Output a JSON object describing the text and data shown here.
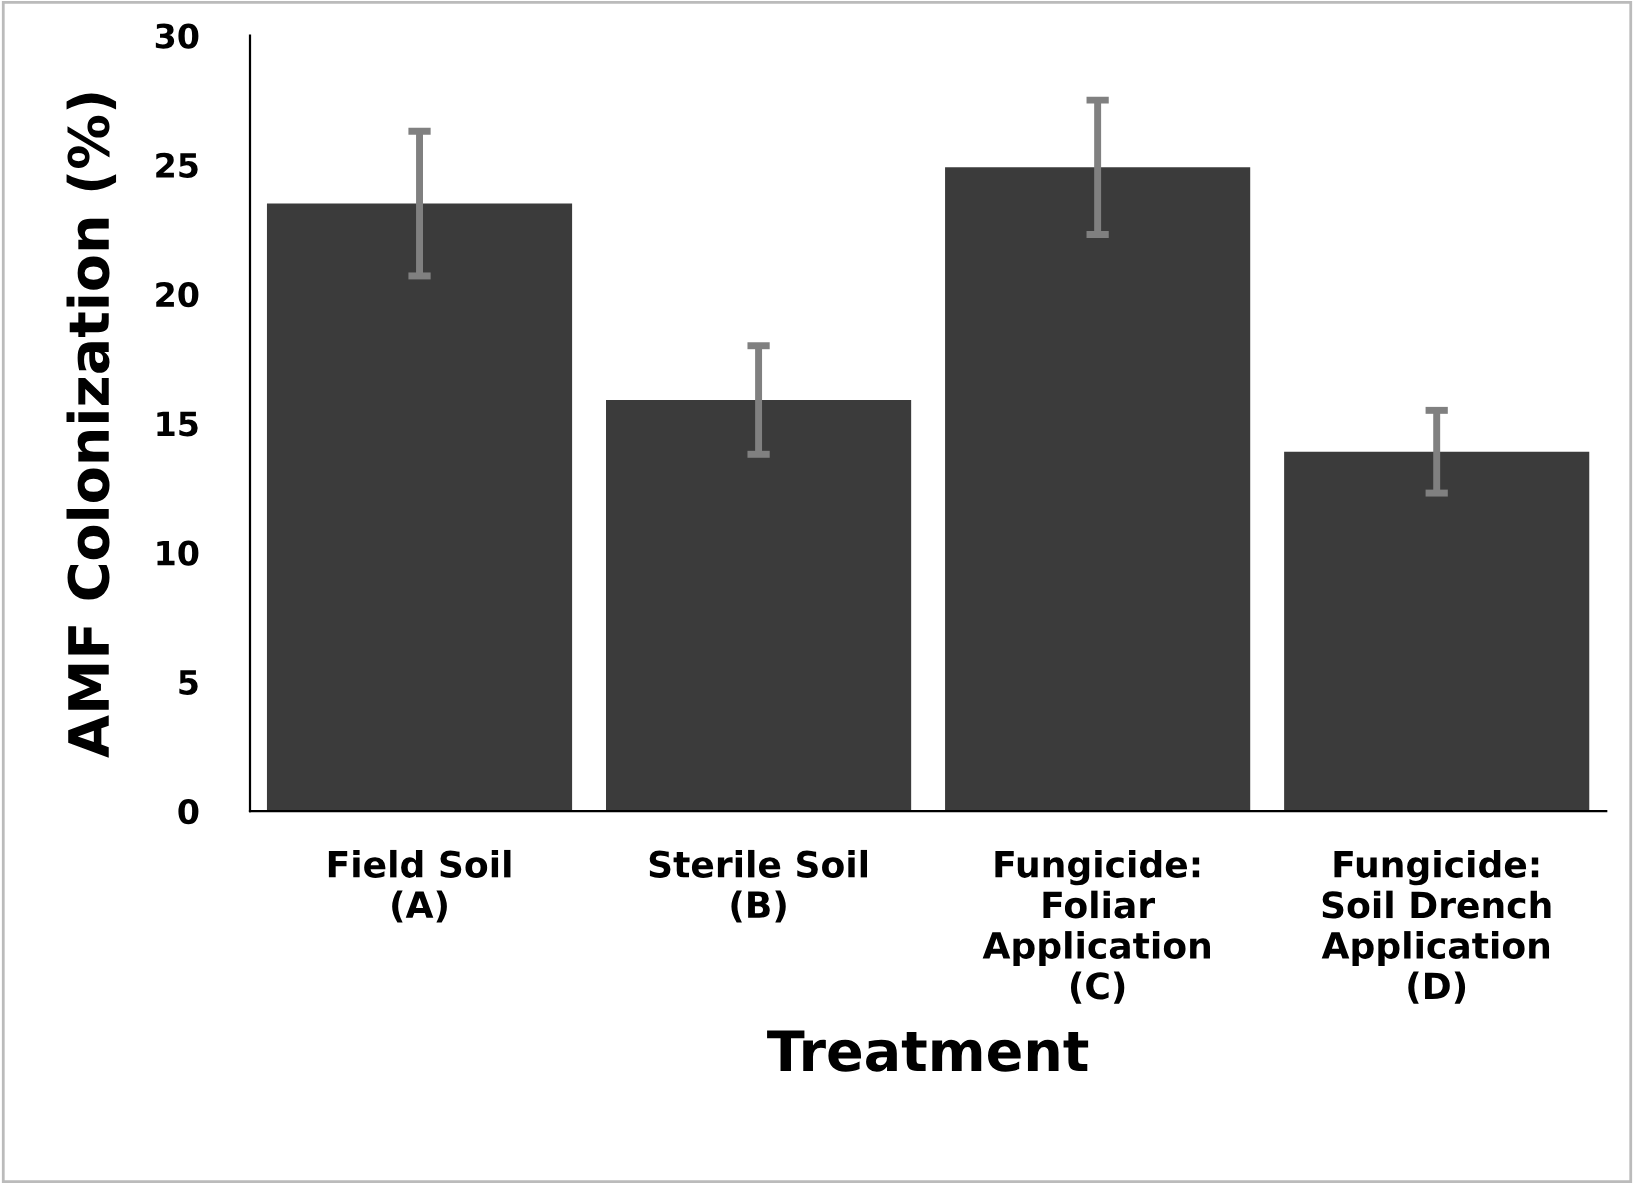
{
  "chart_data": {
    "type": "bar",
    "xlabel": "Treatment",
    "ylabel": "AMF Colonization (%)",
    "categories": [
      "Field Soil\n(A)",
      "Sterile Soil\n(B)",
      "Fungicide:\nFoliar\nApplication\n(C)",
      "Fungicide:\nSoil Drench\nApplication\n(D)"
    ],
    "values": [
      23.5,
      15.9,
      24.9,
      13.9
    ],
    "errors": [
      2.8,
      2.1,
      2.6,
      1.6
    ],
    "color": "#3b3b3b",
    "ylim": [
      0,
      30
    ],
    "yticks": [
      0,
      5,
      10,
      15,
      20,
      25,
      30
    ],
    "grid": false
  }
}
